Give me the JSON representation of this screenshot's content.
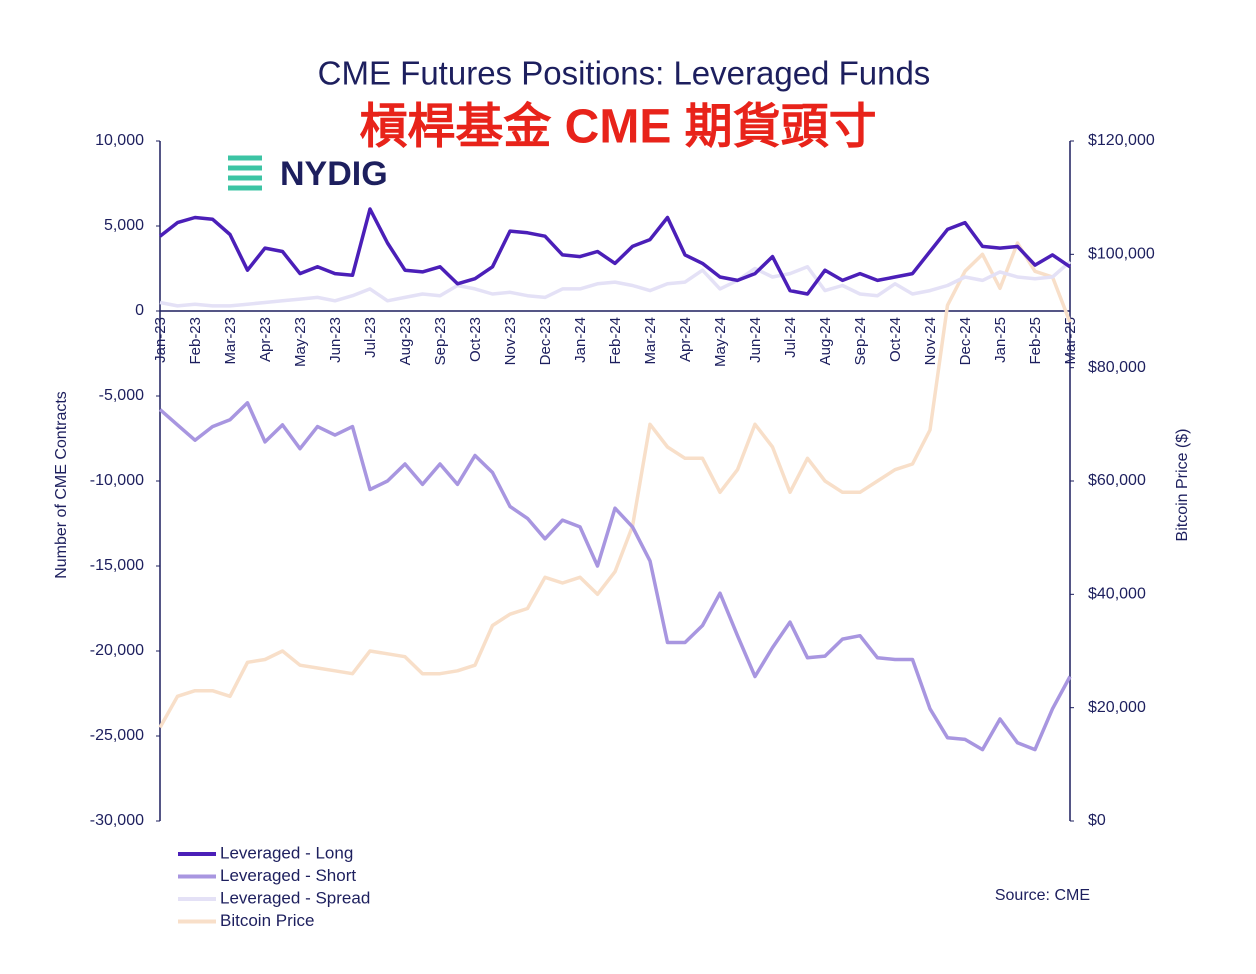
{
  "chart_data": {
    "type": "line",
    "title": "CME Futures Positions: Leveraged Funds",
    "subtitle": "槓桿基金 CME 期貨頭寸",
    "logo": "NYDIG",
    "source": "Source: CME",
    "ylabel": "Number of CME Contracts",
    "y2label": "Bitcoin Price ($)",
    "categories": [
      "Jan-23",
      null,
      "Feb-23",
      null,
      "Mar-23",
      null,
      "Apr-23",
      null,
      "May-23",
      null,
      "Jun-23",
      null,
      "Jul-23",
      null,
      "Aug-23",
      null,
      "Sep-23",
      null,
      "Oct-23",
      null,
      "Nov-23",
      null,
      "Dec-23",
      null,
      "Jan-24",
      null,
      "Feb-24",
      null,
      "Mar-24",
      null,
      "Apr-24",
      null,
      "May-24",
      null,
      "Jun-24",
      null,
      "Jul-24",
      null,
      "Aug-24",
      null,
      "Sep-24",
      null,
      "Oct-24",
      null,
      "Nov-24",
      null,
      "Dec-24",
      null,
      "Jan-25",
      null,
      "Feb-25",
      null,
      "Mar-25"
    ],
    "ylim": [
      -30000,
      10000
    ],
    "yticks": [
      {
        "value": 10000,
        "label": "10,000"
      },
      {
        "value": 5000,
        "label": "5,000"
      },
      0,
      {
        "value": -5000,
        "label": "-5,000"
      },
      {
        "value": -10000,
        "label": "-10,000"
      },
      {
        "value": -15000,
        "label": "-15,000"
      },
      {
        "value": -20000,
        "label": "-20,000"
      },
      {
        "value": -25000,
        "label": "-25,000"
      },
      {
        "value": -30000,
        "label": "-30,000"
      }
    ],
    "y2lim": [
      0,
      120000
    ],
    "y2ticks": [
      {
        "value": 120000,
        "label": "$120,000"
      },
      {
        "value": 100000,
        "label": "$100,000"
      },
      {
        "value": 80000,
        "label": "$80,000"
      },
      {
        "value": 60000,
        "label": "$60,000"
      },
      {
        "value": 40000,
        "label": "$40,000"
      },
      {
        "value": 20000,
        "label": "$20,000"
      },
      {
        "value": 0,
        "label": "$0"
      }
    ],
    "series": [
      {
        "name": "Bitcoin Price",
        "color": "#f8dfc9",
        "axis": "y2",
        "values": [
          16500,
          22000,
          23000,
          23000,
          22000,
          28000,
          28500,
          30000,
          27500,
          27000,
          26500,
          26000,
          30000,
          29500,
          29000,
          26000,
          26000,
          26500,
          27500,
          34500,
          36500,
          37500,
          43000,
          42000,
          43000,
          40000,
          44000,
          52000,
          70000,
          66000,
          64000,
          64000,
          58000,
          62000,
          70000,
          66000,
          58000,
          64000,
          60000,
          58000,
          58000,
          60000,
          62000,
          63000,
          69000,
          91000,
          97000,
          100000,
          94000,
          102000,
          97000,
          96000,
          88000
        ]
      },
      {
        "name": "Leveraged - Spread",
        "color": "#e4e1f6",
        "values": [
          500,
          300,
          400,
          300,
          300,
          400,
          500,
          600,
          700,
          800,
          600,
          900,
          1300,
          600,
          800,
          1000,
          900,
          1500,
          1300,
          1000,
          1100,
          900,
          800,
          1300,
          1300,
          1600,
          1700,
          1500,
          1200,
          1600,
          1700,
          2400,
          1300,
          1800,
          2500,
          2000,
          2200,
          2600,
          1200,
          1500,
          1000,
          900,
          1600,
          1000,
          1200,
          1500,
          2000,
          1800,
          2300,
          2000,
          1900,
          2000,
          2900
        ]
      },
      {
        "name": "Leveraged - Short",
        "color": "#a896e0",
        "values": [
          -5800,
          -6700,
          -7600,
          -6800,
          -6400,
          -5400,
          -7700,
          -6700,
          -8100,
          -6800,
          -7300,
          -6800,
          -10500,
          -10000,
          -9000,
          -10200,
          -9000,
          -10200,
          -8500,
          -9500,
          -11500,
          -12200,
          -13400,
          -12300,
          -12700,
          -15000,
          -11600,
          -12700,
          -14700,
          -19500,
          -19500,
          -18500,
          -16600,
          -19100,
          -21500,
          -19800,
          -18300,
          -20400,
          -20300,
          -19300,
          -19100,
          -20400,
          -20500,
          -20500,
          -23400,
          -25100,
          -25200,
          -25800,
          -24000,
          -25400,
          -25800,
          -23400,
          -21500
        ]
      },
      {
        "name": "Leveraged - Long",
        "color": "#4b1fb8",
        "values": [
          4400,
          5200,
          5500,
          5400,
          4500,
          2400,
          3700,
          3500,
          2200,
          2600,
          2200,
          2100,
          6000,
          4000,
          2400,
          2300,
          2600,
          1600,
          1900,
          2600,
          4700,
          4600,
          4400,
          3300,
          3200,
          3500,
          2800,
          3800,
          4200,
          5500,
          3300,
          2800,
          2000,
          1800,
          2200,
          3200,
          1200,
          1000,
          2400,
          1800,
          2200,
          1800,
          2000,
          2200,
          3500,
          4800,
          5200,
          3800,
          3700,
          3800,
          2700,
          3300,
          2600
        ]
      }
    ]
  }
}
